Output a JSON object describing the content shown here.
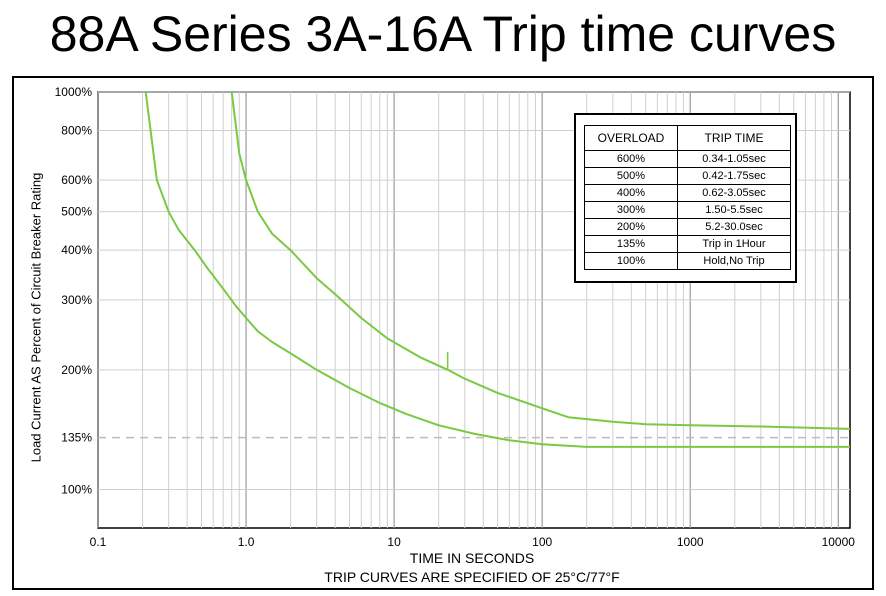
{
  "title": "88A Series 3A-16A Trip time curves",
  "chart_data": {
    "type": "line",
    "xscale": "log",
    "xlim": [
      0.1,
      12000
    ],
    "ylim": [
      80,
      1000
    ],
    "xlabel": "TIME IN SECONDS",
    "subtitle": "TRIP CURVES ARE SPECIFIED OF 25°C/77°F",
    "ylabel": "Load Current AS Percent of Circuit Breaker Rating",
    "x_ticks": [
      {
        "v": 0.1,
        "label": "0.1"
      },
      {
        "v": 1,
        "label": "1.0"
      },
      {
        "v": 10,
        "label": "10"
      },
      {
        "v": 100,
        "label": "100"
      },
      {
        "v": 1000,
        "label": "1000"
      },
      {
        "v": 10000,
        "label": "10000"
      }
    ],
    "y_ticks": [
      {
        "v": 1000,
        "label": "1000%"
      },
      {
        "v": 800,
        "label": "800%"
      },
      {
        "v": 600,
        "label": "600%"
      },
      {
        "v": 500,
        "label": "500%"
      },
      {
        "v": 400,
        "label": "400%"
      },
      {
        "v": 300,
        "label": "300%"
      },
      {
        "v": 200,
        "label": "200%"
      },
      {
        "v": 135,
        "label": "135%"
      },
      {
        "v": 100,
        "label": "100%"
      }
    ],
    "reference_line": {
      "y": 135
    },
    "grid": true,
    "line_color": "#7ac943",
    "series": [
      {
        "x": [
          0.21,
          0.25,
          0.3,
          0.35,
          0.45,
          0.55,
          0.7,
          0.85,
          1.0,
          1.2,
          1.5,
          2.0,
          3.0,
          5.0,
          8.0,
          12.0,
          20.0,
          35.0,
          60.0,
          100.0,
          200.0,
          500.0,
          1000.0,
          3000.0,
          12000.0
        ],
        "y": [
          1000,
          600,
          500,
          450,
          400,
          360,
          320,
          290,
          270,
          250,
          235,
          220,
          200,
          180,
          165,
          155,
          145,
          138,
          133,
          130,
          128,
          128,
          128,
          128,
          128
        ]
      },
      {
        "x": [
          0.8,
          0.9,
          1.0,
          1.2,
          1.5,
          2.0,
          3.0,
          4.0,
          6.0,
          9.0,
          15.0,
          23.0,
          30.0,
          50.0,
          100.0,
          150.0,
          300.0,
          500.0,
          1000.0,
          3000.0,
          12000.0
        ],
        "y": [
          1000,
          700,
          600,
          500,
          440,
          400,
          340,
          310,
          270,
          240,
          215,
          200,
          190,
          175,
          160,
          152,
          148,
          146,
          145,
          144,
          142
        ]
      }
    ],
    "table": {
      "headers": [
        "OVERLOAD",
        "TRIP TIME"
      ],
      "rows": [
        [
          "600%",
          "0.34-1.05sec"
        ],
        [
          "500%",
          "0.42-1.75sec"
        ],
        [
          "400%",
          "0.62-3.05sec"
        ],
        [
          "300%",
          "1.50-5.5sec"
        ],
        [
          "200%",
          "5.2-30.0sec"
        ],
        [
          "135%",
          "Trip in 1Hour"
        ],
        [
          "100%",
          "Hold,No Trip"
        ]
      ]
    }
  }
}
